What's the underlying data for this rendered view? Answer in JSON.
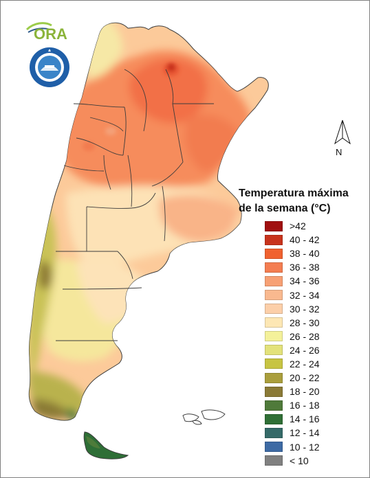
{
  "map": {
    "land_color": "#fcca9a",
    "border_color": "#3c3c3c",
    "zone_colors": {
      "north_orange": "#f68c5c",
      "north_deep": "#f27046",
      "hotspot": "#9c1010",
      "central_light": "#fde2b6",
      "pampas": "#f9b488",
      "patagonia_yellow": "#f5e79c",
      "andes_olive": "#b9b24e",
      "andes_dark": "#8e7c36",
      "south_green": "#4d7b3a",
      "south_deep": "#2e6e36"
    }
  },
  "logos": {
    "ora_text": "ORA",
    "seal_icon": "seal-icon"
  },
  "north_arrow": {
    "label": "N"
  },
  "legend": {
    "title_line1": "Temperatura máxima",
    "title_line2": "de la semana (°C)",
    "items": [
      {
        "label": ">42",
        "color": "#a00f0f"
      },
      {
        "label": "40 - 42",
        "color": "#c8331c"
      },
      {
        "label": "38 - 40",
        "color": "#f0612f"
      },
      {
        "label": "36 - 38",
        "color": "#f47d51"
      },
      {
        "label": "34 - 36",
        "color": "#f7a074"
      },
      {
        "label": "32 - 34",
        "color": "#f9b98f"
      },
      {
        "label": "30 - 32",
        "color": "#fccfa9"
      },
      {
        "label": "28 - 30",
        "color": "#fde7b4"
      },
      {
        "label": "26 - 28",
        "color": "#f4f19a"
      },
      {
        "label": "24 - 26",
        "color": "#e3e27a"
      },
      {
        "label": "22 - 24",
        "color": "#c7c442"
      },
      {
        "label": "20 - 22",
        "color": "#aa9e3c"
      },
      {
        "label": "18 - 20",
        "color": "#8a7a36"
      },
      {
        "label": "16 - 18",
        "color": "#4f7a3a"
      },
      {
        "label": "14 - 16",
        "color": "#2f6f35"
      },
      {
        "label": "12 - 14",
        "color": "#356a68"
      },
      {
        "label": "10 - 12",
        "color": "#3d6aa4"
      },
      {
        "label": "< 10",
        "color": "#808080"
      }
    ]
  }
}
